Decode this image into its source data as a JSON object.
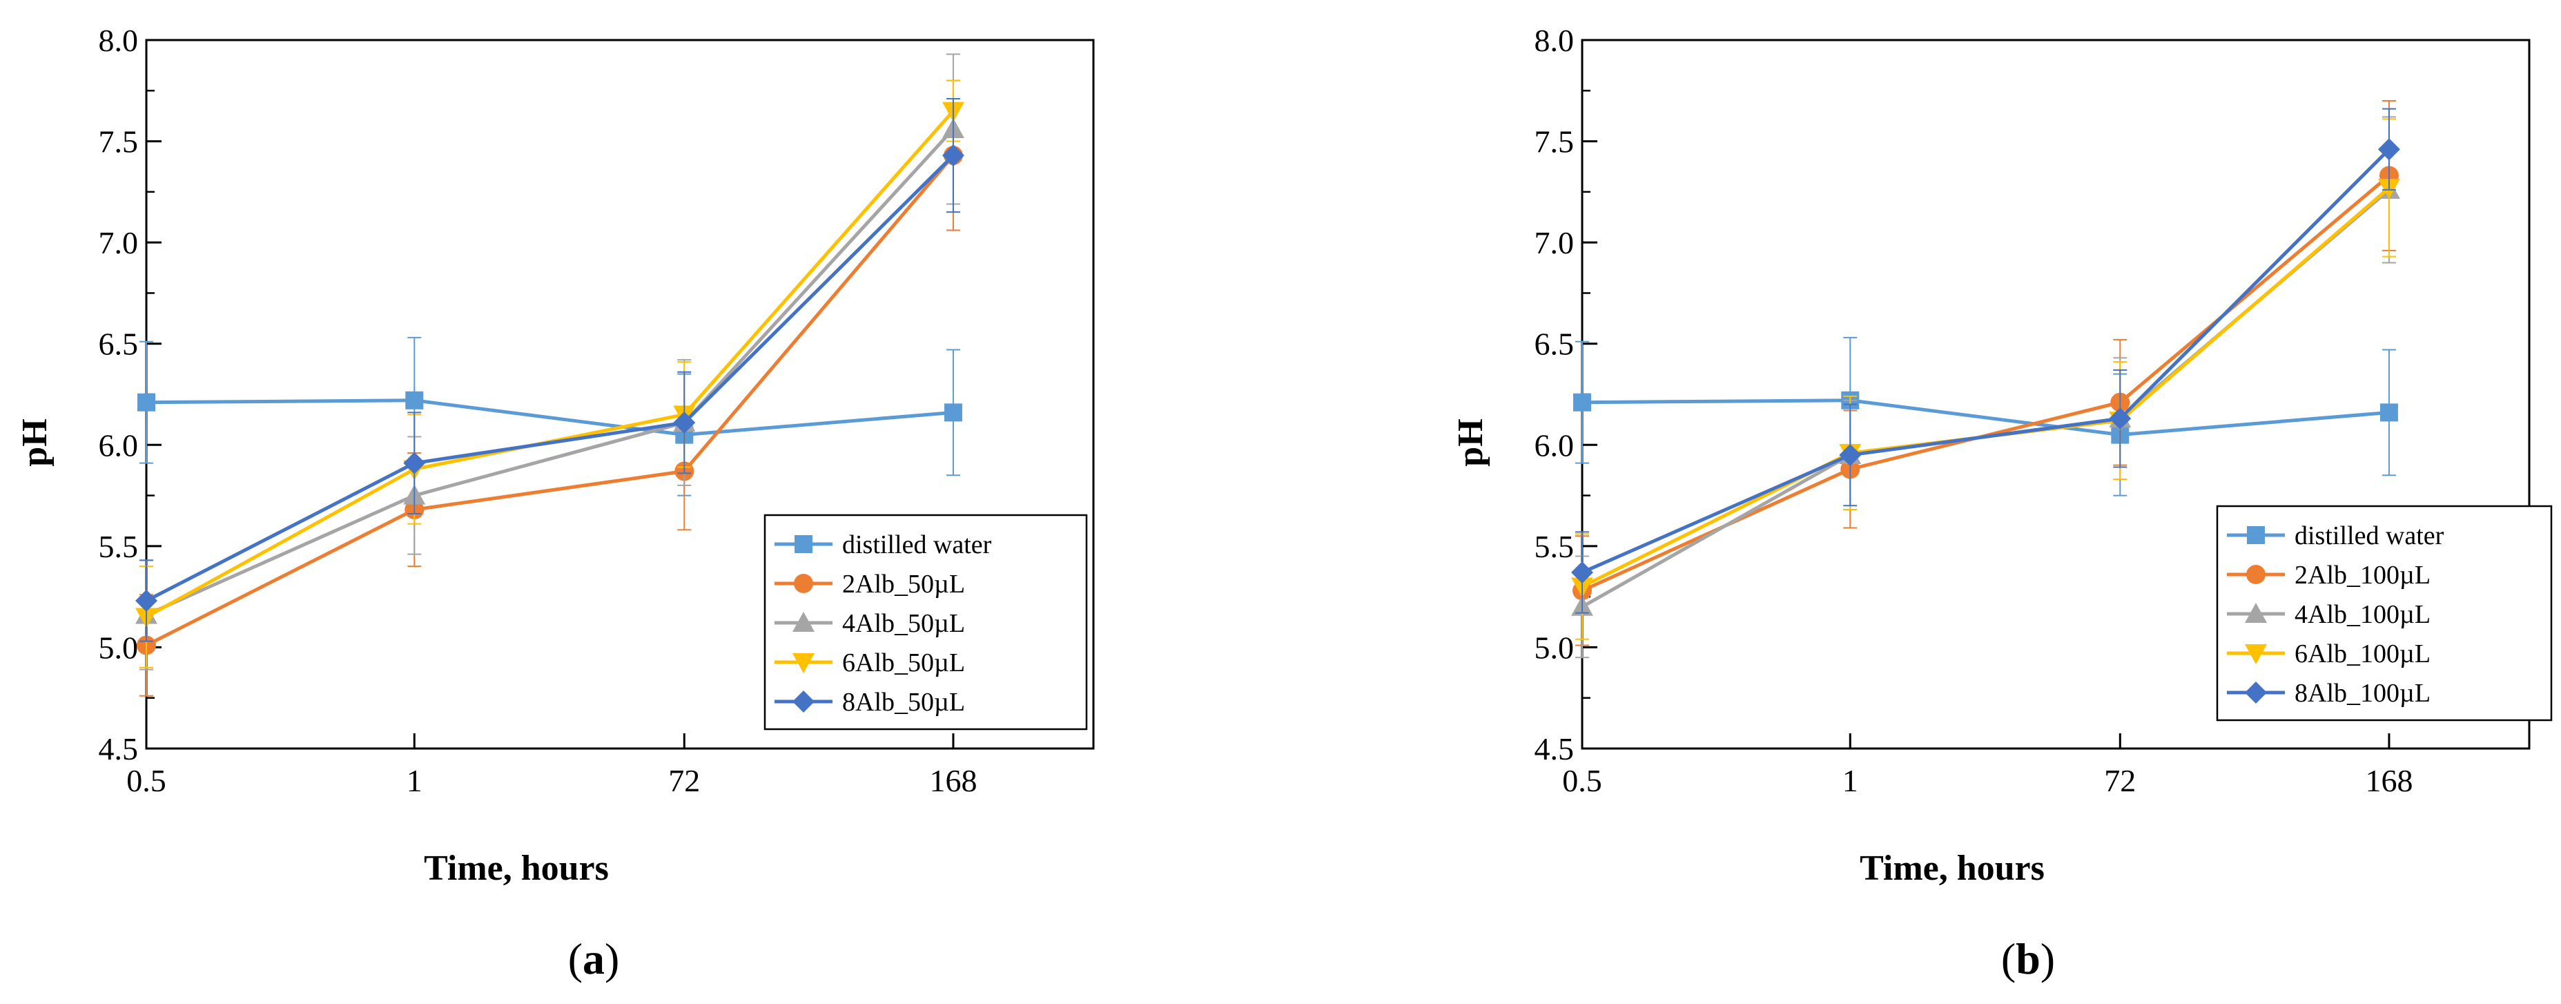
{
  "chart_data": [
    {
      "type": "line",
      "panel_label": "(a)",
      "panel_letter": "a",
      "xlabel": "Time, hours",
      "ylabel": "pH",
      "categories": [
        "0.5",
        "1",
        "72",
        "168"
      ],
      "ylim": [
        4.5,
        8.0
      ],
      "yticks": [
        "4.5",
        "5.0",
        "5.5",
        "6.0",
        "6.5",
        "7.0",
        "7.5",
        "8.0"
      ],
      "legend_position": "bottom-right",
      "series": [
        {
          "name": "distilled water",
          "color": "#5B9BD5",
          "marker": "square",
          "values": [
            6.21,
            6.22,
            6.05,
            6.16
          ],
          "errors": [
            0.3,
            0.31,
            0.3,
            0.31
          ]
        },
        {
          "name": "2Alb_50µL",
          "color": "#ED7D31",
          "marker": "circle",
          "values": [
            5.01,
            5.68,
            5.87,
            7.43
          ],
          "errors": [
            0.25,
            0.28,
            0.29,
            0.37
          ]
        },
        {
          "name": "4Alb_50µL",
          "color": "#A5A5A5",
          "marker": "triangle-up",
          "values": [
            5.16,
            5.75,
            6.11,
            7.56
          ],
          "errors": [
            0.27,
            0.29,
            0.31,
            0.37
          ]
        },
        {
          "name": "6Alb_50µL",
          "color": "#FFC000",
          "marker": "triangle-down",
          "values": [
            5.15,
            5.88,
            6.15,
            7.65
          ],
          "errors": [
            0.25,
            0.27,
            0.26,
            0.15
          ]
        },
        {
          "name": "8Alb_50µL",
          "color": "#4472C4",
          "marker": "diamond",
          "values": [
            5.23,
            5.91,
            6.11,
            7.43
          ],
          "errors": [
            0.2,
            0.25,
            0.25,
            0.28
          ]
        }
      ]
    },
    {
      "type": "line",
      "panel_label": "(b)",
      "panel_letter": "b",
      "xlabel": "Time, hours",
      "ylabel": "pH",
      "categories": [
        "0.5",
        "1",
        "72",
        "168"
      ],
      "ylim": [
        4.5,
        8.0
      ],
      "yticks": [
        "4.5",
        "5.0",
        "5.5",
        "6.0",
        "6.5",
        "7.0",
        "7.5",
        "8.0"
      ],
      "legend_position": "bottom-right",
      "series": [
        {
          "name": "distilled water",
          "color": "#5B9BD5",
          "marker": "square",
          "values": [
            6.21,
            6.22,
            6.05,
            6.16
          ],
          "errors": [
            0.3,
            0.31,
            0.3,
            0.31
          ]
        },
        {
          "name": "2Alb_100µL",
          "color": "#ED7D31",
          "marker": "circle",
          "values": [
            5.28,
            5.88,
            6.21,
            7.33
          ],
          "errors": [
            0.27,
            0.29,
            0.31,
            0.37
          ]
        },
        {
          "name": "4Alb_100µL",
          "color": "#A5A5A5",
          "marker": "triangle-up",
          "values": [
            5.2,
            5.95,
            6.13,
            7.26
          ],
          "errors": [
            0.25,
            0.27,
            0.3,
            0.36
          ]
        },
        {
          "name": "6Alb_100µL",
          "color": "#FFC000",
          "marker": "triangle-down",
          "values": [
            5.3,
            5.96,
            6.12,
            7.27
          ],
          "errors": [
            0.26,
            0.28,
            0.29,
            0.34
          ]
        },
        {
          "name": "8Alb_100µL",
          "color": "#4472C4",
          "marker": "diamond",
          "values": [
            5.37,
            5.95,
            6.13,
            7.46
          ],
          "errors": [
            0.2,
            0.25,
            0.24,
            0.2
          ]
        }
      ]
    }
  ]
}
